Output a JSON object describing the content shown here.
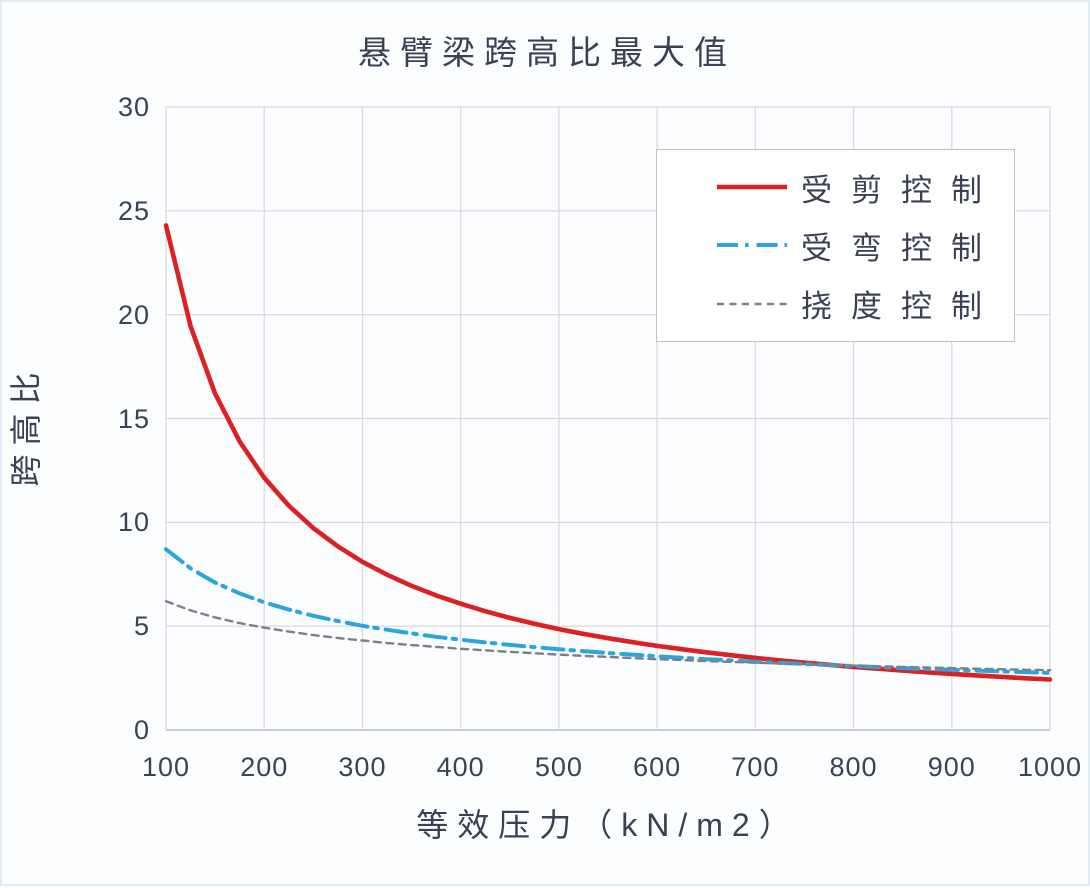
{
  "chart_data": {
    "type": "line",
    "title": "悬臂梁跨高比最大值",
    "xlabel": "等效压力（kN/m2）",
    "ylabel": "跨高比",
    "xlim": [
      100,
      1000
    ],
    "ylim": [
      0,
      30
    ],
    "x_ticks": [
      "100",
      "200",
      "300",
      "400",
      "500",
      "600",
      "700",
      "800",
      "900",
      "1000"
    ],
    "y_ticks": [
      "0",
      "5",
      "10",
      "15",
      "20",
      "25",
      "30"
    ],
    "grid": true,
    "legend_position": "upper-right-inside",
    "colors": {
      "text": "#3b4154",
      "gridline": "#d8dadf",
      "axis_line": "#b9bdc5",
      "legend_border": "#bcc0c7",
      "plot_background": "#ffffff"
    },
    "x": [
      100,
      125,
      150,
      175,
      200,
      225,
      250,
      275,
      300,
      325,
      350,
      375,
      400,
      425,
      450,
      475,
      500,
      525,
      550,
      575,
      600,
      625,
      650,
      675,
      700,
      725,
      750,
      775,
      800,
      825,
      850,
      875,
      900,
      925,
      950,
      975,
      1000
    ],
    "series": [
      {
        "name": "受剪控制",
        "color": "#dc2123",
        "style": "solid",
        "values": [
          24.3,
          19.44,
          16.2,
          13.89,
          12.15,
          10.8,
          9.72,
          8.84,
          8.1,
          7.48,
          6.94,
          6.48,
          6.08,
          5.72,
          5.4,
          5.12,
          4.86,
          4.63,
          4.42,
          4.23,
          4.05,
          3.89,
          3.74,
          3.6,
          3.47,
          3.35,
          3.24,
          3.14,
          3.04,
          2.95,
          2.86,
          2.78,
          2.7,
          2.63,
          2.56,
          2.49,
          2.43
        ]
      },
      {
        "name": "受弯控制",
        "color": "#2aa5df",
        "style": "dash-dot",
        "values": [
          8.7,
          7.78,
          7.1,
          6.58,
          6.15,
          5.8,
          5.5,
          5.25,
          5.02,
          4.83,
          4.65,
          4.49,
          4.35,
          4.22,
          4.1,
          3.99,
          3.89,
          3.8,
          3.71,
          3.63,
          3.55,
          3.48,
          3.41,
          3.35,
          3.29,
          3.23,
          3.18,
          3.13,
          3.08,
          3.03,
          2.98,
          2.94,
          2.9,
          2.86,
          2.82,
          2.79,
          2.75
        ]
      },
      {
        "name": "挠度控制",
        "color": "#7d8086",
        "style": "dashed",
        "values": [
          6.2,
          5.76,
          5.42,
          5.15,
          4.93,
          4.74,
          4.57,
          4.43,
          4.31,
          4.19,
          4.09,
          4.0,
          3.91,
          3.84,
          3.76,
          3.7,
          3.63,
          3.57,
          3.52,
          3.46,
          3.41,
          3.37,
          3.32,
          3.28,
          3.24,
          3.2,
          3.17,
          3.13,
          3.1,
          3.07,
          3.04,
          3.01,
          2.98,
          2.95,
          2.93,
          2.9,
          2.88
        ]
      }
    ]
  }
}
